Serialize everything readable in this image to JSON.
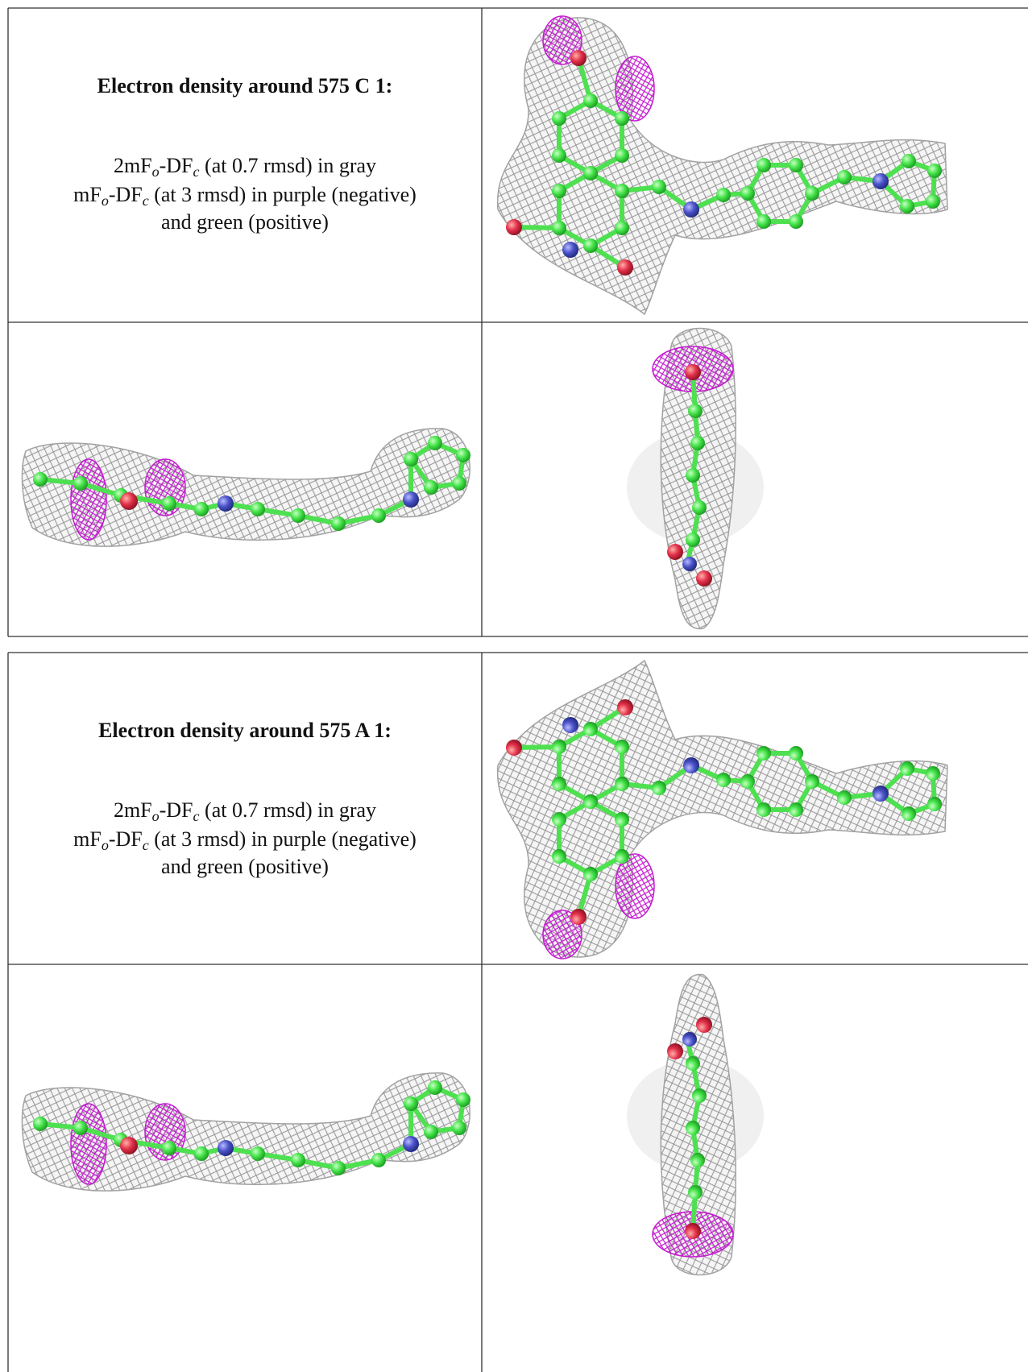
{
  "tables": [
    {
      "caption": {
        "title": "Electron density around 575 C 1:",
        "lines": [
          [
            "2mF",
            "o",
            "-DF",
            "c",
            " (at 0.7 rmsd) in gray"
          ],
          [
            "mF",
            "o",
            "-DF",
            "c",
            " (at 3 rmsd) in purple (negative)"
          ],
          [
            "and green (positive)"
          ]
        ]
      }
    },
    {
      "caption": {
        "title": "Electron density around 575 A 1:",
        "lines": [
          [
            "2mF",
            "o",
            "-DF",
            "c",
            " (at 0.7 rmsd) in gray"
          ],
          [
            "mF",
            "o",
            "-DF",
            "c",
            " (at 3 rmsd) in purple (negative)"
          ],
          [
            "and green (positive)"
          ]
        ]
      }
    }
  ]
}
